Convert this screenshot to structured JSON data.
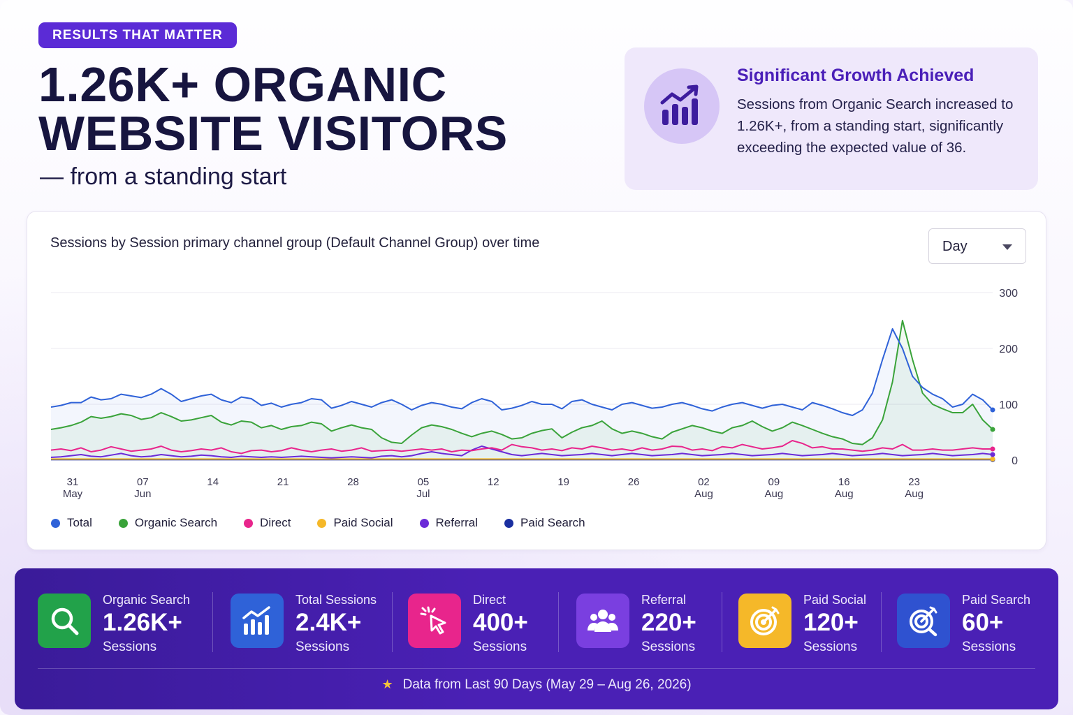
{
  "badge": "RESULTS THAT MATTER",
  "headline": {
    "line1": "1.26K+ ORGANIC",
    "line2": "WEBSITE VISITORS",
    "subline": "— from a standing start"
  },
  "callout": {
    "icon": "growth-chart-icon",
    "title": "Significant Growth Achieved",
    "body": "Sessions from Organic Search increased to 1.26K+, from a standing start, significantly exceeding the expected value of 36."
  },
  "chart_card": {
    "title": "Sessions by Session primary channel group (Default Channel Group) over time",
    "granularity": "Day"
  },
  "chart_data": {
    "type": "line",
    "title": "Sessions by Session primary channel group (Default Channel Group) over time",
    "x_tick_labels": [
      {
        "day": "31",
        "month": "May",
        "index": 0
      },
      {
        "day": "07",
        "month": "Jun",
        "index": 7
      },
      {
        "day": "14",
        "month": "",
        "index": 14
      },
      {
        "day": "21",
        "month": "",
        "index": 21
      },
      {
        "day": "28",
        "month": "",
        "index": 28
      },
      {
        "day": "05",
        "month": "Jul",
        "index": 35
      },
      {
        "day": "12",
        "month": "",
        "index": 42
      },
      {
        "day": "19",
        "month": "",
        "index": 49
      },
      {
        "day": "26",
        "month": "",
        "index": 56
      },
      {
        "day": "02",
        "month": "Aug",
        "index": 63
      },
      {
        "day": "09",
        "month": "Aug",
        "index": 70
      },
      {
        "day": "16",
        "month": "Aug",
        "index": 77
      },
      {
        "day": "23",
        "month": "Aug",
        "index": 84
      }
    ],
    "y_ticks": [
      0,
      100,
      200,
      300
    ],
    "ylim": [
      0,
      300
    ],
    "y_axis_side": "right",
    "grid": true,
    "legend_position": "bottom-left",
    "series": [
      {
        "name": "Total",
        "color": "#2f62d8",
        "values": [
          95,
          98,
          103,
          103,
          113,
          108,
          110,
          118,
          115,
          112,
          118,
          128,
          118,
          105,
          110,
          115,
          118,
          108,
          103,
          113,
          110,
          98,
          102,
          95,
          100,
          103,
          110,
          108,
          93,
          98,
          105,
          100,
          95,
          103,
          108,
          100,
          90,
          98,
          103,
          100,
          95,
          92,
          103,
          110,
          105,
          90,
          93,
          98,
          105,
          100,
          100,
          92,
          105,
          108,
          100,
          95,
          90,
          100,
          103,
          98,
          93,
          95,
          100,
          103,
          98,
          92,
          88,
          95,
          100,
          103,
          98,
          93,
          98,
          100,
          95,
          90,
          103,
          98,
          92,
          85,
          80,
          90,
          120,
          180,
          235,
          200,
          150,
          130,
          118,
          110,
          95,
          100,
          118,
          108,
          90
        ]
      },
      {
        "name": "Organic Search",
        "color": "#3aa33a",
        "values": [
          55,
          58,
          62,
          68,
          78,
          75,
          78,
          83,
          80,
          73,
          76,
          85,
          78,
          70,
          72,
          76,
          80,
          68,
          63,
          70,
          68,
          58,
          62,
          55,
          60,
          62,
          68,
          65,
          52,
          58,
          63,
          58,
          55,
          40,
          32,
          30,
          45,
          58,
          63,
          60,
          55,
          48,
          42,
          48,
          52,
          46,
          38,
          40,
          48,
          53,
          56,
          40,
          50,
          58,
          62,
          70,
          56,
          48,
          52,
          48,
          42,
          38,
          50,
          56,
          62,
          58,
          52,
          48,
          58,
          62,
          70,
          60,
          52,
          58,
          68,
          62,
          55,
          48,
          42,
          38,
          30,
          28,
          40,
          72,
          140,
          250,
          180,
          120,
          100,
          92,
          85,
          85,
          100,
          72,
          55
        ]
      },
      {
        "name": "Direct",
        "color": "#e8258c",
        "values": [
          18,
          20,
          17,
          22,
          15,
          18,
          24,
          20,
          16,
          18,
          20,
          25,
          18,
          15,
          17,
          20,
          18,
          22,
          15,
          12,
          17,
          18,
          15,
          17,
          22,
          18,
          15,
          18,
          20,
          16,
          18,
          22,
          16,
          17,
          18,
          16,
          18,
          20,
          18,
          20,
          15,
          18,
          17,
          20,
          22,
          18,
          28,
          24,
          22,
          18,
          20,
          17,
          22,
          20,
          25,
          22,
          18,
          20,
          17,
          22,
          18,
          20,
          25,
          24,
          18,
          20,
          17,
          24,
          22,
          28,
          24,
          20,
          22,
          25,
          35,
          30,
          22,
          24,
          20,
          20,
          18,
          16,
          18,
          22,
          20,
          28,
          18,
          18,
          20,
          18,
          18,
          20,
          22,
          20,
          20
        ]
      },
      {
        "name": "Paid Social",
        "color": "#f5b829",
        "values": [
          2,
          2,
          2,
          2,
          2,
          2,
          2,
          2,
          2,
          2,
          2,
          2,
          2,
          2,
          2,
          2,
          2,
          2,
          2,
          2,
          2,
          2,
          2,
          2,
          2,
          2,
          2,
          2,
          2,
          2,
          2,
          2,
          2,
          2,
          2,
          2,
          2,
          2,
          2,
          2,
          2,
          2,
          2,
          2,
          2,
          2,
          2,
          2,
          2,
          2,
          2,
          2,
          2,
          2,
          2,
          2,
          2,
          2,
          2,
          2,
          2,
          2,
          2,
          2,
          2,
          2,
          2,
          2,
          2,
          2,
          2,
          2,
          2,
          2,
          2,
          2,
          2,
          2,
          2,
          2,
          2,
          2,
          2,
          2,
          2,
          2,
          2,
          2,
          2,
          2,
          2,
          2,
          2,
          2,
          2
        ]
      },
      {
        "name": "Referral",
        "color": "#6b2bd8",
        "values": [
          5,
          6,
          8,
          10,
          7,
          6,
          9,
          12,
          8,
          6,
          7,
          10,
          8,
          6,
          7,
          9,
          8,
          6,
          5,
          7,
          6,
          5,
          6,
          5,
          6,
          7,
          6,
          5,
          4,
          5,
          6,
          5,
          4,
          7,
          8,
          6,
          8,
          12,
          15,
          12,
          10,
          8,
          18,
          25,
          20,
          15,
          10,
          8,
          10,
          12,
          10,
          8,
          9,
          10,
          12,
          10,
          8,
          10,
          12,
          10,
          8,
          9,
          10,
          12,
          10,
          8,
          9,
          10,
          12,
          10,
          8,
          9,
          10,
          12,
          10,
          8,
          9,
          10,
          12,
          10,
          8,
          9,
          10,
          12,
          10,
          8,
          9,
          10,
          12,
          10,
          8,
          9,
          10,
          12,
          10
        ]
      },
      {
        "name": "Paid Search",
        "color": "#1a2fa0",
        "values": [
          1,
          1,
          1,
          1,
          1,
          1,
          1,
          1,
          1,
          1,
          1,
          1,
          1,
          1,
          1,
          1,
          1,
          1,
          1,
          1,
          1,
          1,
          1,
          1,
          1,
          1,
          1,
          1,
          1,
          1,
          1,
          1,
          1,
          1,
          1,
          1,
          1,
          1,
          1,
          1,
          1,
          1,
          1,
          1,
          1,
          1,
          1,
          1,
          1,
          1,
          1,
          1,
          1,
          1,
          1,
          1,
          1,
          1,
          1,
          1,
          1,
          1,
          1,
          1,
          1,
          1,
          1,
          1,
          1,
          1,
          1,
          1,
          1,
          1,
          1,
          1,
          1,
          1,
          1,
          1,
          1,
          1,
          1,
          1,
          1,
          1,
          1,
          1,
          1,
          1,
          1,
          1,
          1,
          1,
          1
        ]
      }
    ]
  },
  "stats": [
    {
      "label": "Organic Search",
      "value": "1.26K+",
      "sub": "Sessions",
      "icon": "search-icon",
      "color": "#22a24a"
    },
    {
      "label": "Total Sessions",
      "value": "2.4K+",
      "sub": "Sessions",
      "icon": "bar-chart-icon",
      "color": "#2f62d8"
    },
    {
      "label": "Direct",
      "value": "400+",
      "sub": "Sessions",
      "icon": "cursor-click-icon",
      "color": "#e8258c"
    },
    {
      "label": "Referral",
      "value": "220+",
      "sub": "Sessions",
      "icon": "users-icon",
      "color": "#7a3fe0"
    },
    {
      "label": "Paid Social",
      "value": "120+",
      "sub": "Sessions",
      "icon": "target-icon",
      "color": "#f5b829"
    },
    {
      "label": "Paid Search",
      "value": "60+",
      "sub": "Sessions",
      "icon": "target-search-icon",
      "color": "#2f52d0"
    }
  ],
  "footnote": "Data from Last 90 Days (May 29 – Aug 26, 2026)"
}
